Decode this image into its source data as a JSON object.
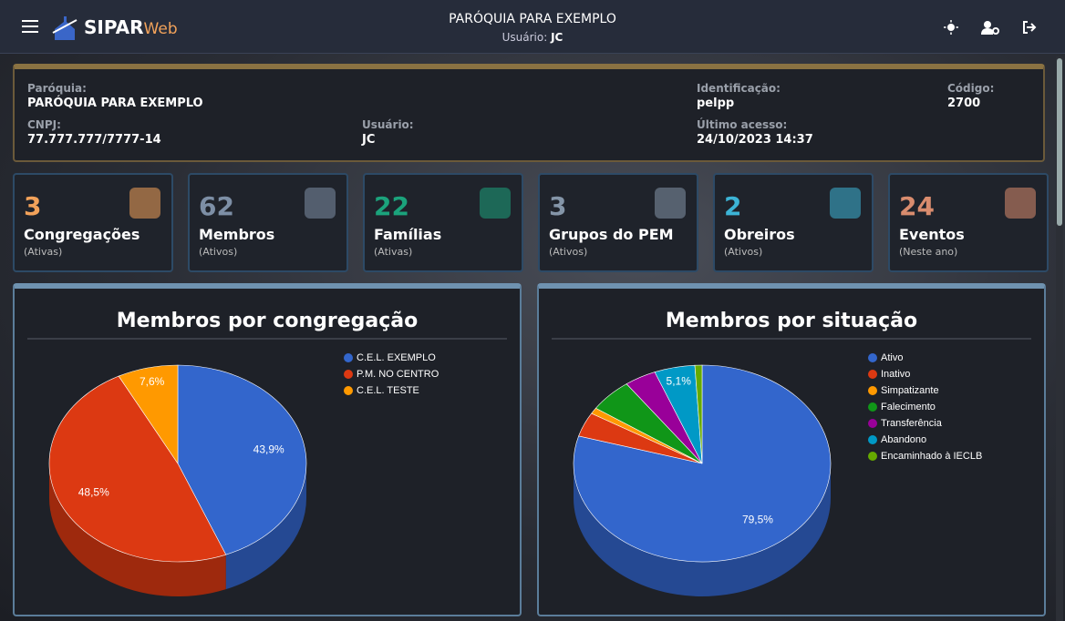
{
  "header": {
    "brand": "SIPAR",
    "brand_suffix": "Web",
    "title": "PARÓQUIA PARA EXEMPLO",
    "user_label": "Usuário:",
    "user": "JC"
  },
  "info": [
    {
      "label": "Paróquia:",
      "value": "PARÓQUIA PARA EXEMPLO"
    },
    {
      "label": "Identificação:",
      "value": "pelpp"
    },
    {
      "label": "Código:",
      "value": "2700"
    },
    {
      "label": "CNPJ:",
      "value": "77.777.777/7777-14"
    },
    {
      "label": "Usuário:",
      "value": "JC"
    },
    {
      "label": "Último acesso:",
      "value": "24/10/2023 14:37"
    }
  ],
  "cards": [
    {
      "value": 3,
      "label": "Congregações",
      "sub": "(Ativas)",
      "color": "#f2a25a"
    },
    {
      "value": 62,
      "label": "Membros",
      "sub": "(Ativos)",
      "color": "#7d8fa6"
    },
    {
      "value": 22,
      "label": "Famílias",
      "sub": "(Ativas)",
      "color": "#1ba37c"
    },
    {
      "value": 3,
      "label": "Grupos do PEM",
      "sub": "(Ativos)",
      "color": "#8495a8"
    },
    {
      "value": 2,
      "label": "Obreiros",
      "sub": "(Ativos)",
      "color": "#3cb4d6"
    },
    {
      "value": 24,
      "label": "Eventos",
      "sub": "(Neste ano)",
      "color": "#d98c6e"
    }
  ],
  "chart_data": [
    {
      "type": "pie",
      "title": "Membros por congregação",
      "categories": [
        "C.E.L. EXEMPLO",
        "P.M. NO CENTRO",
        "C.E.L. TESTE"
      ],
      "values": [
        43.9,
        48.5,
        7.6
      ],
      "value_labels": [
        "43,9%",
        "48,5%",
        "7,6%"
      ],
      "colors": [
        "#3366cc",
        "#dc3912",
        "#ff9900"
      ]
    },
    {
      "type": "pie",
      "title": "Membros por situação",
      "categories": [
        "Ativo",
        "Inativo",
        "Simpatizante",
        "Falecimento",
        "Transferência",
        "Abandono",
        "Encaminhado à IECLB"
      ],
      "values": [
        79.5,
        4,
        1,
        5.5,
        4,
        5.1,
        0.9
      ],
      "value_labels": [
        "79,5%",
        null,
        null,
        null,
        null,
        "5,1%",
        null
      ],
      "colors": [
        "#3366cc",
        "#dc3912",
        "#ff9900",
        "#109618",
        "#990099",
        "#0099c6",
        "#66aa00"
      ]
    }
  ]
}
